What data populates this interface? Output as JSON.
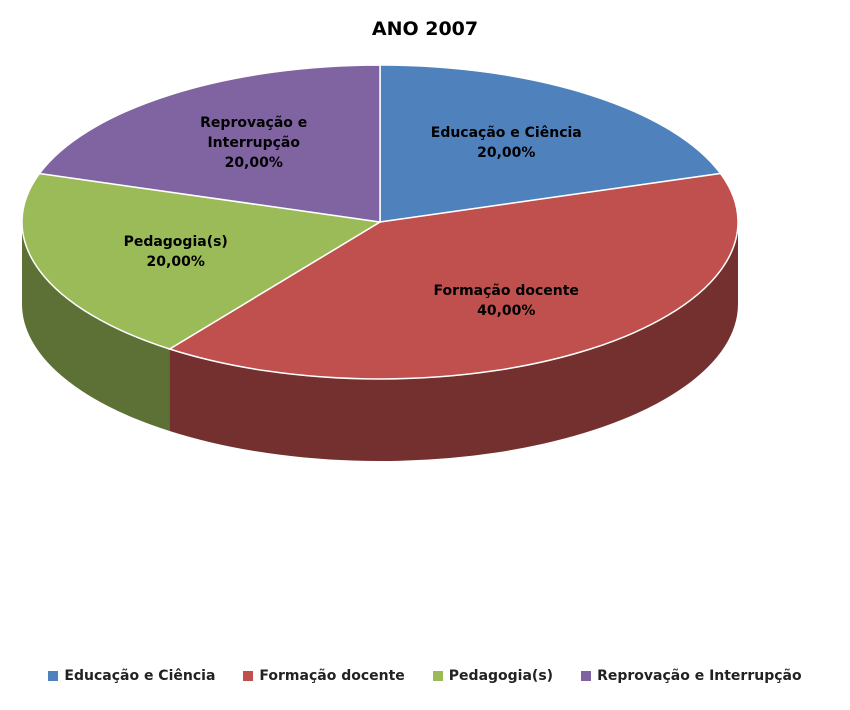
{
  "chart_data": {
    "type": "pie",
    "title": "ANO 2007",
    "categories": [
      "Educação e Ciência",
      "Formação docente",
      "Pedagogia(s)",
      "Reprovação e Interrupção"
    ],
    "values": [
      20,
      40,
      20,
      20
    ],
    "value_labels": [
      "20,00%",
      "40,00%",
      "20,00%",
      "20,00%"
    ],
    "colors": [
      "#4f81bd",
      "#c0504d",
      "#9bbb59",
      "#8064a2"
    ],
    "legend": "bottom"
  }
}
